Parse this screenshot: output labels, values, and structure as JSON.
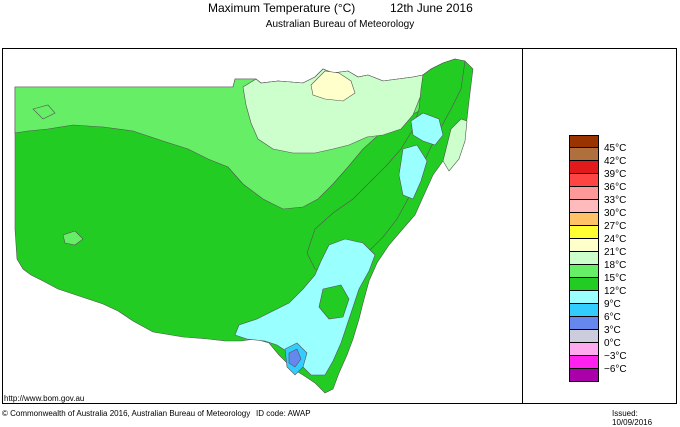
{
  "header": {
    "title": "Maximum Temperature (°C)",
    "date": "12th June 2016",
    "subtitle": "Australian Bureau of Meteorology"
  },
  "legend": {
    "items": [
      {
        "label": "45°C",
        "color": "#993300"
      },
      {
        "label": "42°C",
        "color": "#b0703e"
      },
      {
        "label": "39°C",
        "color": "#e31a1c"
      },
      {
        "label": "36°C",
        "color": "#ff4444"
      },
      {
        "label": "33°C",
        "color": "#ff9999"
      },
      {
        "label": "30°C",
        "color": "#ffbbbb"
      },
      {
        "label": "27°C",
        "color": "#ffc266"
      },
      {
        "label": "24°C",
        "color": "#ffff33"
      },
      {
        "label": "21°C",
        "color": "#ffffcc"
      },
      {
        "label": "18°C",
        "color": "#ccffcc"
      },
      {
        "label": "15°C",
        "color": "#66ee66"
      },
      {
        "label": "12°C",
        "color": "#22cc22"
      },
      {
        "label": "9°C",
        "color": "#99ffff"
      },
      {
        "label": "6°C",
        "color": "#33ccff"
      },
      {
        "label": "3°C",
        "color": "#6688ee"
      },
      {
        "label": "0°C",
        "color": "#ccccdd"
      },
      {
        "label": "−3°C",
        "color": "#ffaaee"
      },
      {
        "label": "−6°C",
        "color": "#ff22ee"
      },
      {
        "label": "",
        "color": "#aa00aa"
      }
    ]
  },
  "map_colors": {
    "ocean": "#ffffff",
    "band_18_21": "#ccffcc",
    "band_15_18": "#66ee66",
    "band_12_15": "#22cc22",
    "band_9_12": "#99ffff",
    "band_6_9": "#33ccff",
    "band_3_6": "#6688ee",
    "band_21_24": "#ffffcc",
    "contour": "#555555"
  },
  "footer": {
    "url": "http://www.bom.gov.au",
    "copyright": "© Commonwealth of Australia 2016, Australian Bureau of Meteorology",
    "id_code": "ID code: AWAP",
    "issued": "Issued: 10/09/2016"
  }
}
